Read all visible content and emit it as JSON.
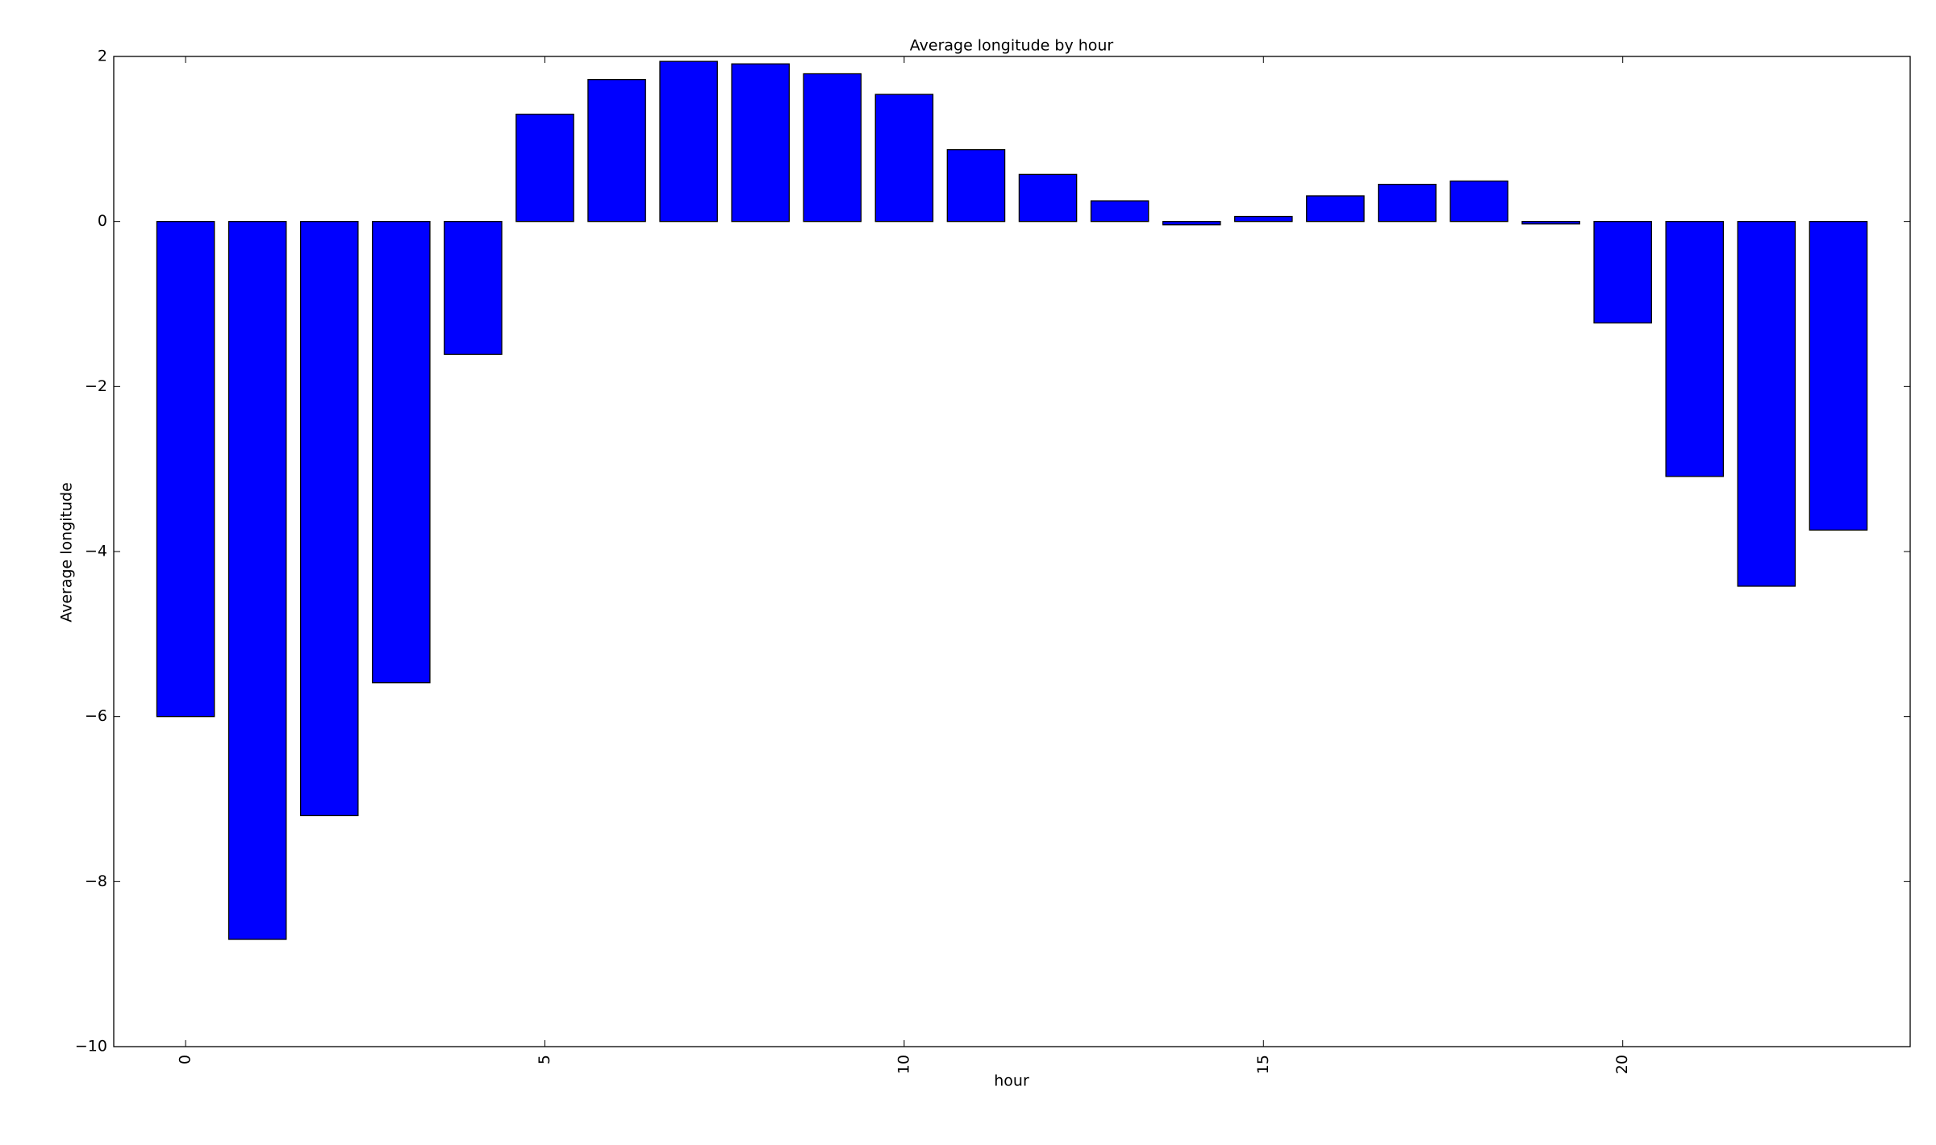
{
  "chart_data": {
    "type": "bar",
    "title": "Average longitude by hour",
    "x_label": "hour",
    "y_label": "Average longitude",
    "x": [
      0,
      1,
      2,
      3,
      4,
      5,
      6,
      7,
      8,
      9,
      10,
      11,
      12,
      13,
      14,
      15,
      16,
      17,
      18,
      19,
      20,
      21,
      22,
      23
    ],
    "values": [
      -6.0,
      -8.7,
      -7.2,
      -5.59,
      -1.61,
      1.3,
      1.72,
      1.94,
      1.91,
      1.79,
      1.54,
      0.87,
      0.57,
      0.25,
      -0.04,
      0.06,
      0.31,
      0.45,
      0.49,
      -0.03,
      -1.23,
      -3.09,
      -4.42,
      -3.74
    ],
    "color": "#0000ff",
    "xlim": [
      -1,
      24
    ],
    "xticks": [
      0,
      5,
      10,
      15,
      20
    ],
    "ylim": [
      -10,
      2
    ],
    "yticks": [
      {
        "value": -10,
        "label": "−10"
      },
      {
        "value": -8,
        "label": "−8"
      },
      {
        "value": -6,
        "label": "−6"
      },
      {
        "value": -4,
        "label": "−4"
      },
      {
        "value": -2,
        "label": "−2"
      },
      0,
      2
    ],
    "grid": false
  }
}
